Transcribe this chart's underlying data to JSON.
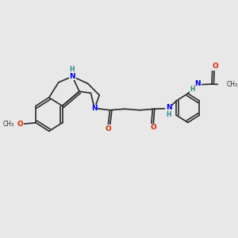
{
  "bg_color": "#e8e8e8",
  "bond_color": "#2a2a2a",
  "N_color": "#0000ee",
  "O_color": "#dd2200",
  "H_color": "#2a8888",
  "font_size_atom": 6.5,
  "font_size_small": 5.5,
  "line_width": 1.2,
  "xlim": [
    0,
    10
  ],
  "ylim": [
    0,
    10
  ]
}
